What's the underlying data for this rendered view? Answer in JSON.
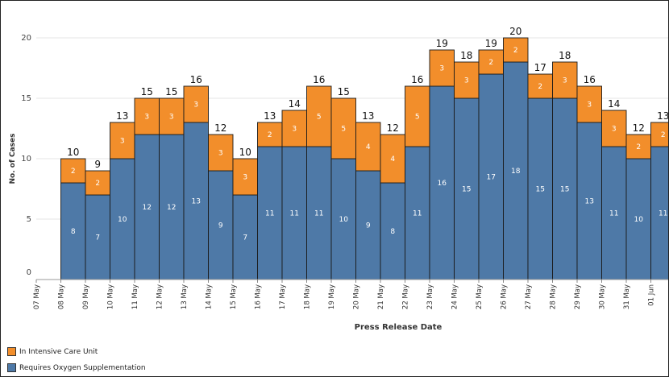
{
  "chart_data": {
    "type": "bar",
    "stacked": true,
    "xlabel": "Press Release Date",
    "ylabel": "No. of Cases",
    "ylim": [
      0,
      20
    ],
    "yticks": [
      0,
      5,
      10,
      15,
      20
    ],
    "grid": true,
    "categories": [
      "07 May",
      "08 May",
      "09 May",
      "10 May",
      "11 May",
      "12 May",
      "13 May",
      "14 May",
      "15 May",
      "16 May",
      "17 May",
      "18 May",
      "19 May",
      "20 May",
      "21 May",
      "22 May",
      "23 May",
      "24 May",
      "25 May",
      "26 May",
      "27 May",
      "28 May",
      "29 May",
      "30 May",
      "31 May",
      "01 Jun"
    ],
    "series": [
      {
        "name": "Requires Oxygen Supplementation",
        "color": "#4e79a7",
        "values": [
          null,
          8,
          7,
          10,
          12,
          12,
          13,
          9,
          7,
          11,
          11,
          11,
          10,
          9,
          8,
          11,
          16,
          15,
          17,
          18,
          15,
          15,
          13,
          11,
          10,
          11
        ]
      },
      {
        "name": "In Intensive Care Unit",
        "color": "#f28e2b",
        "values": [
          null,
          2,
          2,
          3,
          3,
          3,
          3,
          3,
          3,
          2,
          3,
          5,
          5,
          4,
          4,
          5,
          3,
          3,
          2,
          2,
          2,
          3,
          3,
          3,
          2,
          2
        ]
      }
    ],
    "totals": [
      null,
      10,
      9,
      13,
      15,
      15,
      16,
      12,
      10,
      13,
      14,
      16,
      15,
      13,
      12,
      16,
      19,
      18,
      19,
      20,
      17,
      18,
      16,
      14,
      12,
      13
    ],
    "legend_position": "bottom-left"
  }
}
